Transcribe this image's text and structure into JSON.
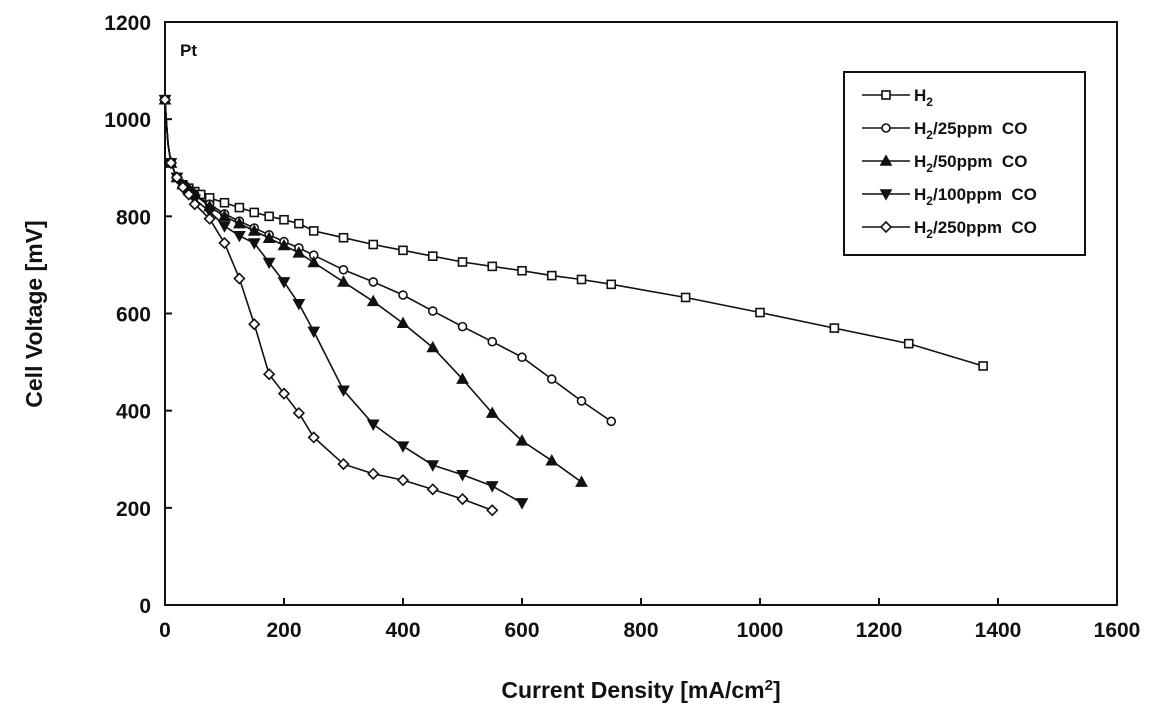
{
  "chart_data": {
    "type": "line",
    "annotation": "Pt",
    "xlabel": "Current Density [mA/cm",
    "xlabel_sup": "2",
    "xlabel_end": "]",
    "ylabel": "Cell Voltage [mV]",
    "xlim": [
      0,
      1600
    ],
    "ylim": [
      0,
      1200
    ],
    "xticks": [
      0,
      200,
      400,
      600,
      800,
      1000,
      1200,
      1400,
      1600
    ],
    "yticks": [
      0,
      200,
      400,
      600,
      800,
      1000,
      1200
    ],
    "grid": false,
    "legend_position": "top-right",
    "series": [
      {
        "name_main": "H",
        "name_sub": "2",
        "name_rest": "",
        "marker": "square",
        "x": [
          0,
          2,
          5,
          10,
          20,
          30,
          40,
          50,
          60,
          75,
          100,
          125,
          150,
          175,
          200,
          225,
          250,
          300,
          350,
          400,
          450,
          500,
          550,
          600,
          650,
          700,
          750,
          875,
          1000,
          1125,
          1250,
          1375
        ],
        "y": [
          1040,
          1000,
          950,
          910,
          880,
          865,
          858,
          851,
          845,
          838,
          828,
          818,
          808,
          800,
          793,
          785,
          770,
          756,
          742,
          730,
          718,
          706,
          697,
          688,
          678,
          670,
          660,
          633,
          602,
          570,
          538,
          492
        ]
      },
      {
        "name_main": "H",
        "name_sub": "2",
        "name_rest": "/25ppm  CO",
        "marker": "circle",
        "x": [
          0,
          2,
          5,
          10,
          20,
          30,
          40,
          50,
          75,
          100,
          125,
          150,
          175,
          200,
          225,
          250,
          300,
          350,
          400,
          450,
          500,
          550,
          600,
          650,
          700,
          750
        ],
        "y": [
          1040,
          1000,
          950,
          910,
          880,
          865,
          855,
          845,
          825,
          805,
          790,
          776,
          762,
          748,
          735,
          720,
          690,
          665,
          638,
          605,
          573,
          542,
          510,
          465,
          420,
          378
        ]
      },
      {
        "name_main": "H",
        "name_sub": "2",
        "name_rest": "/50ppm  CO",
        "marker": "triangle-up",
        "x": [
          0,
          2,
          5,
          10,
          20,
          30,
          40,
          50,
          75,
          100,
          125,
          150,
          175,
          200,
          225,
          250,
          300,
          350,
          400,
          450,
          500,
          550,
          600,
          650,
          700
        ],
        "y": [
          1040,
          1000,
          950,
          910,
          880,
          865,
          855,
          845,
          820,
          800,
          785,
          770,
          755,
          740,
          725,
          705,
          665,
          625,
          580,
          530,
          465,
          395,
          338,
          297,
          253
        ]
      },
      {
        "name_main": "H",
        "name_sub": "2",
        "name_rest": "/100ppm  CO",
        "marker": "triangle-down",
        "x": [
          0,
          2,
          5,
          10,
          20,
          30,
          40,
          50,
          75,
          100,
          125,
          150,
          175,
          200,
          225,
          250,
          300,
          350,
          400,
          450,
          500,
          550,
          600
        ],
        "y": [
          1040,
          1000,
          950,
          910,
          880,
          860,
          850,
          835,
          810,
          780,
          760,
          745,
          705,
          665,
          620,
          563,
          442,
          372,
          327,
          288,
          268,
          245,
          210
        ]
      },
      {
        "name_main": "H",
        "name_sub": "2",
        "name_rest": "/250ppm  CO",
        "marker": "diamond",
        "x": [
          0,
          2,
          5,
          10,
          20,
          30,
          40,
          50,
          75,
          100,
          125,
          150,
          175,
          200,
          225,
          250,
          300,
          350,
          400,
          450,
          500,
          550
        ],
        "y": [
          1040,
          1000,
          950,
          910,
          880,
          860,
          845,
          825,
          795,
          745,
          672,
          578,
          475,
          435,
          395,
          345,
          290,
          270,
          257,
          238,
          218,
          195
        ]
      }
    ]
  }
}
